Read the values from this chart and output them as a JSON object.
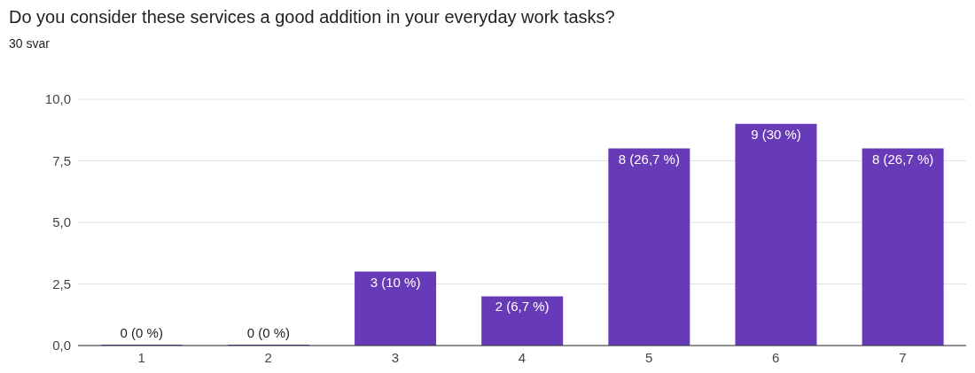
{
  "chart_data": {
    "type": "bar",
    "title": "Do you consider these services a good addition in your everyday work tasks?",
    "subtitle": "30 svar",
    "categories": [
      "1",
      "2",
      "3",
      "4",
      "5",
      "6",
      "7"
    ],
    "values": [
      0,
      0,
      3,
      2,
      8,
      9,
      8
    ],
    "value_labels": [
      "0 (0 %)",
      "0 (0 %)",
      "3 (10 %)",
      "2 (6,7 %)",
      "8 (26,7 %)",
      "9 (30 %)",
      "8 (26,7 %)"
    ],
    "color": "#673ab7",
    "ylim": [
      0,
      10
    ],
    "yticks": [
      {
        "value": 0,
        "label": "0,0"
      },
      {
        "value": 2.5,
        "label": "2,5"
      },
      {
        "value": 5,
        "label": "5,0"
      },
      {
        "value": 7.5,
        "label": "7,5"
      },
      {
        "value": 10,
        "label": "10,0"
      }
    ],
    "grid": "y"
  }
}
